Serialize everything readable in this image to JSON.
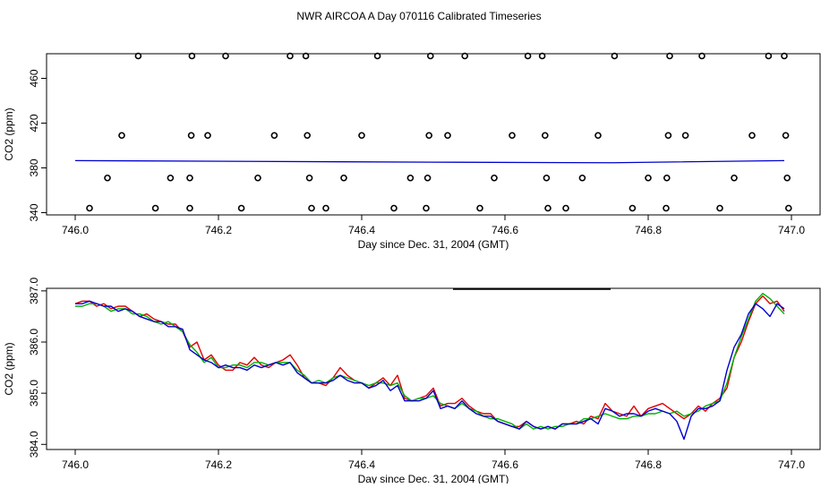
{
  "title": "NWR AIRCOA A  Day 070116  Calibrated Timeseries",
  "colors": {
    "red": "#e00000",
    "green": "#00b000",
    "blue": "#0000d0",
    "black": "#000000"
  },
  "chart_data": [
    {
      "type": "scatter",
      "xlabel": "Day since Dec. 31, 2004 (GMT)",
      "ylabel": "CO2 (ppm)",
      "xlim": [
        745.96,
        747.04
      ],
      "ylim": [
        338,
        482
      ],
      "xticks": [
        746.0,
        746.2,
        746.4,
        746.6,
        746.8,
        747.0
      ],
      "xtick_labels": [
        "746.0",
        "746.2",
        "746.4",
        "746.6",
        "746.8",
        "747.0"
      ],
      "yticks": [
        340,
        380,
        420,
        460
      ],
      "ytick_labels": [
        "340",
        "380",
        "420",
        "460"
      ],
      "points": [
        [
          746.02,
          344
        ],
        [
          746.045,
          371
        ],
        [
          746.065,
          409
        ],
        [
          746.088,
          480
        ],
        [
          746.112,
          344
        ],
        [
          746.133,
          371
        ],
        [
          746.16,
          344
        ],
        [
          746.16,
          371
        ],
        [
          746.162,
          409
        ],
        [
          746.163,
          480
        ],
        [
          746.185,
          409
        ],
        [
          746.21,
          480
        ],
        [
          746.232,
          344
        ],
        [
          746.255,
          371
        ],
        [
          746.278,
          409
        ],
        [
          746.3,
          480
        ],
        [
          746.322,
          480
        ],
        [
          746.324,
          409
        ],
        [
          746.327,
          371
        ],
        [
          746.33,
          344
        ],
        [
          746.35,
          344
        ],
        [
          746.375,
          371
        ],
        [
          746.4,
          409
        ],
        [
          746.422,
          480
        ],
        [
          746.445,
          344
        ],
        [
          746.468,
          371
        ],
        [
          746.49,
          344
        ],
        [
          746.492,
          371
        ],
        [
          746.494,
          409
        ],
        [
          746.496,
          480
        ],
        [
          746.52,
          409
        ],
        [
          746.544,
          480
        ],
        [
          746.565,
          344
        ],
        [
          746.585,
          371
        ],
        [
          746.61,
          409
        ],
        [
          746.632,
          480
        ],
        [
          746.652,
          480
        ],
        [
          746.656,
          409
        ],
        [
          746.658,
          371
        ],
        [
          746.66,
          344
        ],
        [
          746.685,
          344
        ],
        [
          746.708,
          371
        ],
        [
          746.73,
          409
        ],
        [
          746.753,
          480
        ],
        [
          746.778,
          344
        ],
        [
          746.8,
          371
        ],
        [
          746.825,
          344
        ],
        [
          746.826,
          371
        ],
        [
          746.828,
          409
        ],
        [
          746.83,
          480
        ],
        [
          746.852,
          409
        ],
        [
          746.875,
          480
        ],
        [
          746.9,
          344
        ],
        [
          746.92,
          371
        ],
        [
          746.945,
          409
        ],
        [
          746.968,
          480
        ],
        [
          746.99,
          480
        ],
        [
          746.992,
          409
        ],
        [
          746.994,
          371
        ],
        [
          746.996,
          344
        ]
      ],
      "series": [
        {
          "name": "mean",
          "color": "#0000d0",
          "x": [
            746.0,
            746.25,
            746.5,
            746.75,
            746.99
          ],
          "y": [
            386.5,
            385.8,
            385.1,
            384.6,
            386.5
          ]
        }
      ]
    },
    {
      "type": "line",
      "xlabel": "Day since Dec. 31, 2004 (GMT)",
      "ylabel": "CO2 (ppm)",
      "xlim": [
        745.96,
        747.04
      ],
      "ylim": [
        383.9,
        387.05
      ],
      "xticks": [
        746.0,
        746.2,
        746.4,
        746.6,
        746.8,
        747.0
      ],
      "xtick_labels": [
        "746.0",
        "746.2",
        "746.4",
        "746.6",
        "746.8",
        "747.0"
      ],
      "yticks": [
        384.0,
        385.0,
        386.0,
        387.0
      ],
      "ytick_labels": [
        "384.0",
        "385.0",
        "386.0",
        "387.0"
      ],
      "x": [
        746.0,
        746.01,
        746.02,
        746.03,
        746.04,
        746.05,
        746.06,
        746.07,
        746.08,
        746.09,
        746.1,
        746.11,
        746.12,
        746.13,
        746.14,
        746.15,
        746.16,
        746.17,
        746.18,
        746.19,
        746.2,
        746.21,
        746.22,
        746.23,
        746.24,
        746.25,
        746.26,
        746.27,
        746.28,
        746.29,
        746.3,
        746.31,
        746.32,
        746.33,
        746.34,
        746.35,
        746.36,
        746.37,
        746.38,
        746.39,
        746.4,
        746.41,
        746.42,
        746.43,
        746.44,
        746.45,
        746.46,
        746.47,
        746.48,
        746.49,
        746.5,
        746.51,
        746.52,
        746.53,
        746.54,
        746.55,
        746.56,
        746.57,
        746.58,
        746.59,
        746.6,
        746.61,
        746.62,
        746.63,
        746.64,
        746.65,
        746.66,
        746.67,
        746.68,
        746.69,
        746.7,
        746.71,
        746.72,
        746.73,
        746.74,
        746.75,
        746.76,
        746.77,
        746.78,
        746.79,
        746.8,
        746.81,
        746.82,
        746.83,
        746.84,
        746.85,
        746.86,
        746.87,
        746.88,
        746.89,
        746.9,
        746.91,
        746.92,
        746.93,
        746.94,
        746.95,
        746.96,
        746.97,
        746.98,
        746.99
      ],
      "series": [
        {
          "name": "red",
          "color": "#e00000",
          "values": [
            386.75,
            386.8,
            386.8,
            386.7,
            386.75,
            386.65,
            386.7,
            386.7,
            386.6,
            386.5,
            386.55,
            386.45,
            386.4,
            386.35,
            386.35,
            386.2,
            385.9,
            386.0,
            385.65,
            385.75,
            385.55,
            385.45,
            385.45,
            385.6,
            385.55,
            385.7,
            385.55,
            385.5,
            385.6,
            385.65,
            385.75,
            385.55,
            385.3,
            385.2,
            385.2,
            385.15,
            385.3,
            385.5,
            385.35,
            385.25,
            385.2,
            385.1,
            385.2,
            385.3,
            385.15,
            385.35,
            384.9,
            384.85,
            384.9,
            384.95,
            385.1,
            384.75,
            384.8,
            384.8,
            384.9,
            384.75,
            384.65,
            384.6,
            384.6,
            384.45,
            384.4,
            384.35,
            384.35,
            384.45,
            384.35,
            384.3,
            384.35,
            384.3,
            384.4,
            384.4,
            384.45,
            384.4,
            384.55,
            384.5,
            384.8,
            384.65,
            384.6,
            384.55,
            384.75,
            384.55,
            384.7,
            384.75,
            384.8,
            384.7,
            384.6,
            384.5,
            384.6,
            384.75,
            384.65,
            384.8,
            384.9,
            385.1,
            385.7,
            386.0,
            386.4,
            386.75,
            386.9,
            386.75,
            386.8,
            386.6
          ]
        },
        {
          "name": "green",
          "color": "#00b000",
          "values": [
            386.7,
            386.7,
            386.75,
            386.75,
            386.7,
            386.6,
            386.65,
            386.65,
            386.55,
            386.55,
            386.5,
            386.4,
            386.35,
            386.4,
            386.3,
            386.2,
            385.95,
            385.8,
            385.6,
            385.7,
            385.5,
            385.5,
            385.55,
            385.55,
            385.5,
            385.6,
            385.6,
            385.55,
            385.6,
            385.6,
            385.6,
            385.45,
            385.35,
            385.2,
            385.25,
            385.2,
            385.3,
            385.35,
            385.3,
            385.25,
            385.2,
            385.15,
            385.2,
            385.2,
            385.15,
            385.2,
            384.95,
            384.85,
            384.9,
            384.9,
            384.95,
            384.8,
            384.75,
            384.7,
            384.8,
            384.7,
            384.65,
            384.55,
            384.5,
            384.5,
            384.45,
            384.4,
            384.3,
            384.4,
            384.3,
            384.35,
            384.3,
            384.35,
            384.35,
            384.4,
            384.4,
            384.5,
            384.5,
            384.55,
            384.6,
            384.55,
            384.5,
            384.5,
            384.55,
            384.55,
            384.6,
            384.6,
            384.65,
            384.6,
            384.65,
            384.55,
            384.6,
            384.65,
            384.75,
            384.8,
            384.85,
            385.2,
            385.7,
            386.1,
            386.45,
            386.8,
            386.95,
            386.85,
            386.7,
            386.55
          ]
        },
        {
          "name": "blue",
          "color": "#0000d0",
          "values": [
            386.75,
            386.75,
            386.8,
            386.75,
            386.7,
            386.7,
            386.6,
            386.65,
            386.6,
            386.5,
            386.45,
            386.4,
            386.4,
            386.3,
            386.3,
            386.25,
            385.85,
            385.75,
            385.65,
            385.6,
            385.5,
            385.55,
            385.5,
            385.5,
            385.45,
            385.55,
            385.5,
            385.55,
            385.6,
            385.55,
            385.6,
            385.4,
            385.3,
            385.2,
            385.2,
            385.2,
            385.25,
            385.35,
            385.25,
            385.2,
            385.2,
            385.1,
            385.15,
            385.25,
            385.05,
            385.15,
            384.85,
            384.85,
            384.85,
            384.9,
            385.05,
            384.7,
            384.75,
            384.7,
            384.85,
            384.7,
            384.6,
            384.55,
            384.55,
            384.45,
            384.4,
            384.35,
            384.3,
            384.45,
            384.35,
            384.3,
            384.35,
            384.3,
            384.4,
            384.4,
            384.4,
            384.45,
            384.5,
            384.4,
            384.7,
            384.65,
            384.55,
            384.6,
            384.6,
            384.55,
            384.65,
            384.7,
            384.65,
            384.6,
            384.45,
            384.1,
            384.55,
            384.7,
            384.7,
            384.75,
            384.85,
            385.45,
            385.9,
            386.15,
            386.55,
            386.75,
            386.65,
            386.5,
            386.75,
            386.65
          ]
        }
      ],
      "legend_placement": "top-center"
    }
  ]
}
